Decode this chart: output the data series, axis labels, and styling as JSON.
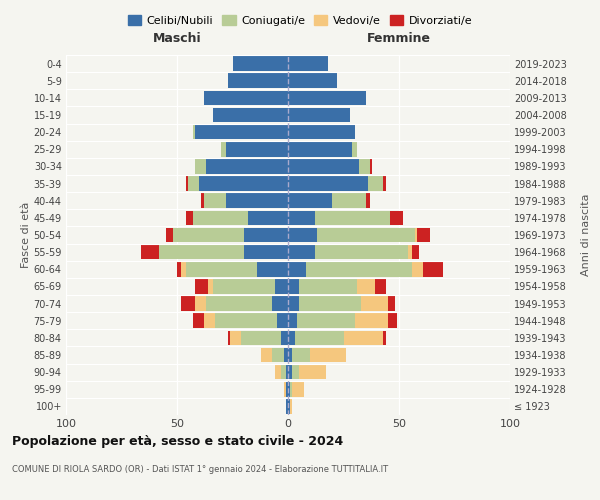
{
  "age_groups": [
    "100+",
    "95-99",
    "90-94",
    "85-89",
    "80-84",
    "75-79",
    "70-74",
    "65-69",
    "60-64",
    "55-59",
    "50-54",
    "45-49",
    "40-44",
    "35-39",
    "30-34",
    "25-29",
    "20-24",
    "15-19",
    "10-14",
    "5-9",
    "0-4"
  ],
  "birth_years": [
    "≤ 1923",
    "1924-1928",
    "1929-1933",
    "1934-1938",
    "1939-1943",
    "1944-1948",
    "1949-1953",
    "1954-1958",
    "1959-1963",
    "1964-1968",
    "1969-1973",
    "1974-1978",
    "1979-1983",
    "1984-1988",
    "1989-1993",
    "1994-1998",
    "1999-2003",
    "2004-2008",
    "2009-2013",
    "2014-2018",
    "2019-2023"
  ],
  "colors": {
    "celibi": "#3a6fa8",
    "coniugati": "#b8cc96",
    "vedovi": "#f5c77e",
    "divorziati": "#cc2222"
  },
  "males": {
    "celibi": [
      1,
      1,
      1,
      2,
      3,
      5,
      7,
      6,
      14,
      20,
      20,
      18,
      28,
      40,
      37,
      28,
      42,
      34,
      38,
      27,
      25
    ],
    "coniugati": [
      0,
      0,
      2,
      5,
      18,
      28,
      30,
      28,
      32,
      38,
      32,
      25,
      10,
      5,
      5,
      2,
      1,
      0,
      0,
      0,
      0
    ],
    "vedovi": [
      0,
      1,
      3,
      5,
      5,
      5,
      5,
      2,
      2,
      0,
      0,
      0,
      0,
      0,
      0,
      0,
      0,
      0,
      0,
      0,
      0
    ],
    "divorziati": [
      0,
      0,
      0,
      0,
      1,
      5,
      6,
      6,
      2,
      8,
      3,
      3,
      1,
      1,
      0,
      0,
      0,
      0,
      0,
      0,
      0
    ]
  },
  "females": {
    "celibi": [
      1,
      1,
      2,
      2,
      3,
      4,
      5,
      5,
      8,
      12,
      13,
      12,
      20,
      36,
      32,
      29,
      30,
      28,
      35,
      22,
      18
    ],
    "coniugati": [
      0,
      1,
      3,
      8,
      22,
      26,
      28,
      26,
      48,
      42,
      44,
      34,
      15,
      7,
      5,
      2,
      0,
      0,
      0,
      0,
      0
    ],
    "vedovi": [
      1,
      5,
      12,
      16,
      18,
      15,
      12,
      8,
      5,
      2,
      1,
      0,
      0,
      0,
      0,
      0,
      0,
      0,
      0,
      0,
      0
    ],
    "divorziati": [
      0,
      0,
      0,
      0,
      1,
      4,
      3,
      5,
      9,
      3,
      6,
      6,
      2,
      1,
      1,
      0,
      0,
      0,
      0,
      0,
      0
    ]
  },
  "xlim": 100,
  "title": "Popolazione per età, sesso e stato civile - 2024",
  "subtitle": "COMUNE DI RIOLA SARDO (OR) - Dati ISTAT 1° gennaio 2024 - Elaborazione TUTTITALIA.IT",
  "ylabel_left": "Fasce di età",
  "ylabel_right": "Anni di nascita",
  "xlabel_left": "Maschi",
  "xlabel_right": "Femmine",
  "legend_labels": [
    "Celibi/Nubili",
    "Coniugati/e",
    "Vedovi/e",
    "Divorziati/e"
  ],
  "background_color": "#f5f5f0",
  "bar_height": 0.85
}
